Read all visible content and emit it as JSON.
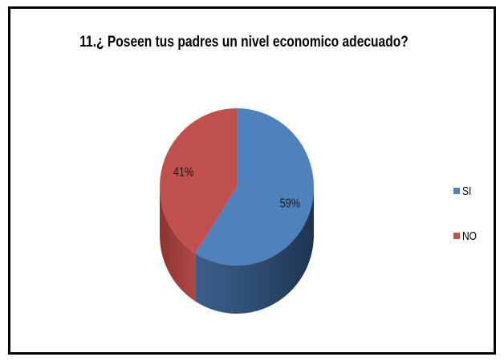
{
  "chart_data": {
    "type": "pie",
    "title": "11.¿ Poseen tus padres un nivel economico adecuado?",
    "categories": [
      "SI",
      "NO"
    ],
    "values": [
      59,
      41
    ],
    "data_labels": [
      "59%",
      "41%"
    ],
    "colors": [
      "#4F81BD",
      "#C0504D"
    ],
    "legend": "right",
    "style": "3d"
  }
}
